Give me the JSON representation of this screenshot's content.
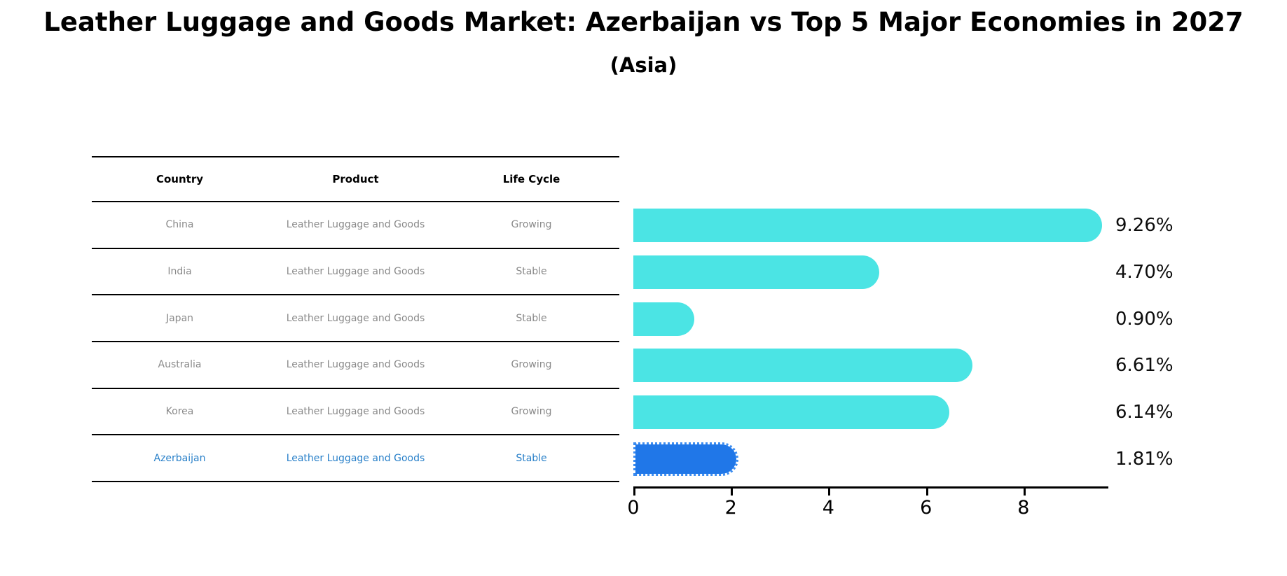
{
  "title": "Leather Luggage and Goods Market: Azerbaijan vs Top 5 Major Economies in 2027",
  "subtitle": "(Asia)",
  "table": {
    "headers": [
      "Country",
      "Product",
      "Life Cycle"
    ],
    "rows": [
      {
        "country": "China",
        "product": "Leather Luggage and Goods",
        "life_cycle": "Growing",
        "highlight": false
      },
      {
        "country": "India",
        "product": "Leather Luggage and Goods",
        "life_cycle": "Stable",
        "highlight": false
      },
      {
        "country": "Japan",
        "product": "Leather Luggage and Goods",
        "life_cycle": "Stable",
        "highlight": false
      },
      {
        "country": "Australia",
        "product": "Leather Luggage and Goods",
        "life_cycle": "Growing",
        "highlight": false
      },
      {
        "country": "Korea",
        "product": "Leather Luggage and Goods",
        "life_cycle": "Growing",
        "highlight": false
      },
      {
        "country": "Azerbaijan",
        "product": "Leather Luggage and Goods",
        "life_cycle": "Stable",
        "highlight": true
      }
    ]
  },
  "chart_data": {
    "type": "bar",
    "orientation": "horizontal",
    "title": "Leather Luggage and Goods Market: Azerbaijan vs Top 5 Major Economies in 2027 (Asia)",
    "categories": [
      "China",
      "India",
      "Japan",
      "Australia",
      "Korea",
      "Azerbaijan"
    ],
    "values": [
      9.26,
      4.7,
      0.9,
      6.61,
      6.14,
      1.81
    ],
    "value_labels": [
      "9.26%",
      "4.70%",
      "0.90%",
      "6.61%",
      "6.14%",
      "1.81%"
    ],
    "x_ticks": [
      0,
      2,
      4,
      6,
      8
    ],
    "x_tick_labels": [
      "0",
      "2",
      "4",
      "6",
      "8"
    ],
    "xlim": [
      0,
      9.74
    ],
    "grid": false,
    "legend": "none",
    "highlight_index": 5,
    "bar_color": "#4be4e4",
    "highlight_bar_color": "#2077e8",
    "highlight_text_color": "#2980c9"
  },
  "colors": {
    "background": "#ffffff",
    "table_line": "#000000",
    "table_text": "#8a8a8a",
    "header_text": "#000000",
    "bar_cyan": "#4be4e4",
    "bar_blue": "#2077e8",
    "azerbaijan_text": "#2980c9"
  }
}
